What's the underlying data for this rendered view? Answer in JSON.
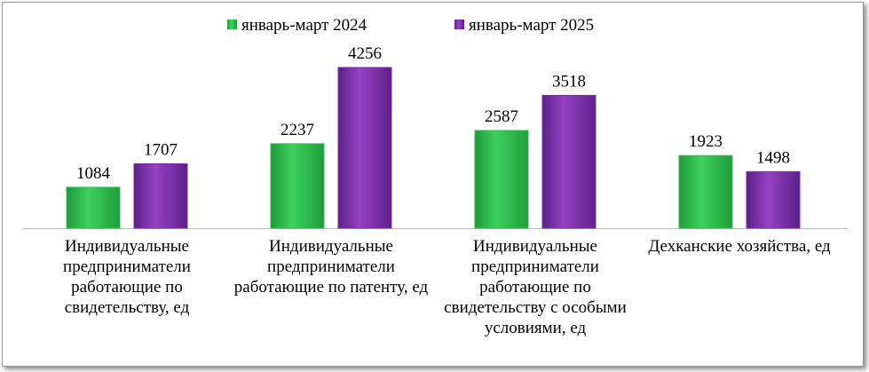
{
  "chart_data": {
    "type": "bar",
    "categories": [
      "Индивидуальные предприниматели работающие по свидетельству, ед",
      "Индивидуальные предприниматели работающие по патенту, ед",
      "Индивидуальные предприниматели работающие по свидетельству с особыми условиями, ед",
      "Дехканские хозяйства, ед"
    ],
    "series": [
      {
        "name": "январь-март 2024",
        "color": "#2fbf4f",
        "values": [
          1084,
          2237,
          2587,
          1923
        ]
      },
      {
        "name": "январь-март 2025",
        "color": "#7b2fa6",
        "values": [
          1707,
          4256,
          3518,
          1498
        ]
      }
    ],
    "legend": "top"
  }
}
